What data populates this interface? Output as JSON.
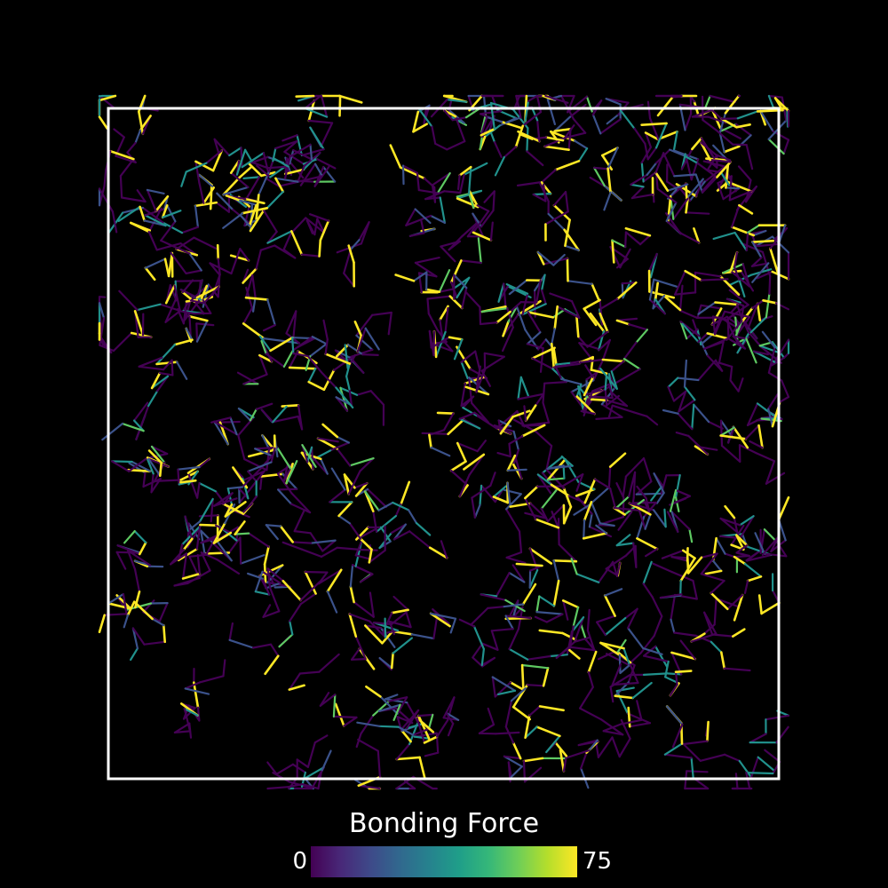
{
  "colorbar": {
    "title": "Bonding Force",
    "min_label": "0",
    "max_label": "75",
    "min_value": 0,
    "max_value": 75,
    "colormap": [
      "#440154",
      "#482878",
      "#3e4989",
      "#31688e",
      "#26828e",
      "#1f9e89",
      "#35b779",
      "#6ece58",
      "#b5de2b",
      "#fde725"
    ]
  },
  "scene": {
    "background": "#000000",
    "frame_color": "#ffffff",
    "bond_colors": {
      "weak": "#440154",
      "low": "#3b528b",
      "mid": "#21918c",
      "high": "#5ec962",
      "max": "#fde725"
    }
  }
}
